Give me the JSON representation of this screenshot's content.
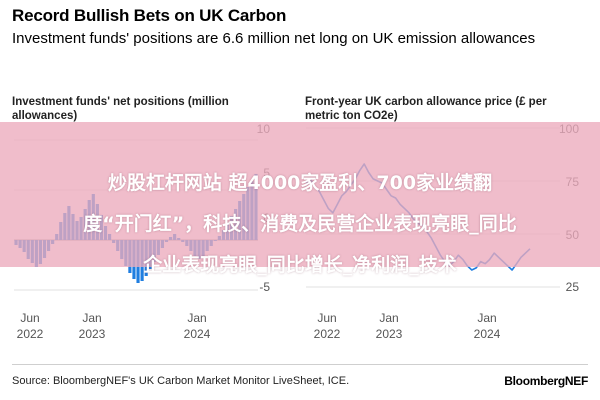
{
  "header": {
    "title": "Record Bullish Bets on UK Carbon",
    "subtitle": "Investment funds' positions are 6.6 million net long on UK emission allowances"
  },
  "chart_data": [
    {
      "type": "bar",
      "title": "Investment funds' net positions (million allowances)",
      "color": "#1f7ee0",
      "x_tick_labels": [
        {
          "month": "Jun",
          "year": "2022"
        },
        {
          "month": "Jan",
          "year": "2023"
        },
        {
          "month": "Jan",
          "year": "2024"
        }
      ],
      "y_tick_labels": [
        "10",
        "5",
        "0",
        "-5"
      ],
      "ylim": [
        -6,
        12
      ],
      "values": [
        -0.5,
        -0.8,
        -1.2,
        -1.9,
        -2.3,
        -2.7,
        -2.4,
        -1.8,
        -1.1,
        -0.4,
        0.6,
        1.8,
        2.7,
        3.4,
        2.6,
        1.9,
        2.3,
        3.1,
        4.0,
        4.6,
        3.6,
        2.5,
        1.4,
        0.6,
        -0.3,
        -1.1,
        -1.9,
        -2.6,
        -3.3,
        -3.9,
        -4.3,
        -4.1,
        -3.6,
        -2.9,
        -2.2,
        -1.5,
        -0.8,
        -0.2,
        0.3,
        0.6,
        0.2,
        -0.2,
        -0.6,
        -1.1,
        -1.6,
        -1.9,
        -1.6,
        -1.1,
        -0.6,
        -0.1,
        0.4,
        1.0,
        1.7,
        2.4,
        3.1,
        3.9,
        4.6,
        5.3,
        5.9,
        6.6
      ]
    },
    {
      "type": "line",
      "title": "Front-year UK carbon allowance price (£ per metric ton CO2e)",
      "color": "#1f7ee0",
      "x_tick_labels": [
        {
          "month": "Jun",
          "year": "2022"
        },
        {
          "month": "Jan",
          "year": "2023"
        },
        {
          "month": "Jan",
          "year": "2024"
        }
      ],
      "y_tick_labels": [
        "100",
        "75",
        "50",
        "25"
      ],
      "ylim": [
        25,
        100
      ],
      "values": [
        74,
        76,
        72,
        70,
        66,
        62,
        60,
        64,
        68,
        70,
        73,
        76,
        80,
        83,
        79,
        76,
        75,
        74,
        71,
        68,
        67,
        64,
        62,
        60,
        57,
        55,
        54,
        51,
        48,
        44,
        40,
        37,
        35,
        37,
        40,
        38,
        35,
        33,
        34,
        37,
        36,
        38,
        41,
        39,
        37,
        35,
        33,
        36,
        39,
        41,
        43
      ]
    }
  ],
  "overlay": {
    "line1": "炒股杠杆网站 超4000家盈利、700家业绩翻",
    "line2": "度“开门红”，科技、消费及民营企业表现亮眼_同比",
    "line3": "企业表现亮眼_同比增长_净利润_技术"
  },
  "footer": {
    "source": "Source: BloombergNEF's UK Carbon Market Monitor LiveSheet, ICE.",
    "brand": "BloombergNEF"
  }
}
